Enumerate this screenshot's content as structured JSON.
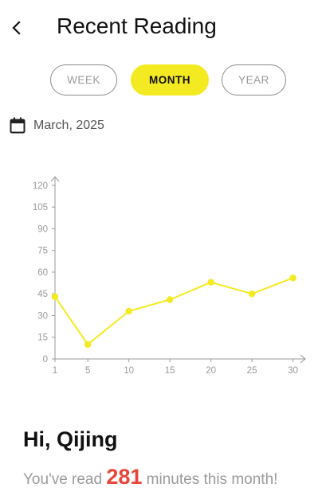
{
  "header": {
    "title": "Recent Reading",
    "back_icon": "chevron-left-icon"
  },
  "tabs": [
    {
      "label": "WEEK",
      "active": false
    },
    {
      "label": "MONTH",
      "active": true
    },
    {
      "label": "YEAR",
      "active": false
    }
  ],
  "date": {
    "icon": "calendar-icon",
    "label": "March, 2025"
  },
  "colors": {
    "accent": "#f3ea21",
    "highlight_number": "#e8463a",
    "muted_text": "#9a9a9a",
    "axis": "#9a9a9a"
  },
  "chart_data": {
    "type": "line",
    "x": [
      1,
      5,
      10,
      15,
      20,
      25,
      30
    ],
    "x_ticks": [
      1,
      5,
      10,
      15,
      20,
      25,
      30
    ],
    "y_ticks": [
      0,
      15,
      30,
      45,
      60,
      75,
      90,
      105,
      120
    ],
    "series": [
      {
        "values": [
          43,
          10,
          33,
          41,
          53,
          45,
          56
        ],
        "color": "#f3ea21"
      }
    ],
    "xlim": [
      1,
      31.5
    ],
    "ylim": [
      0,
      126
    ],
    "title": "",
    "xlabel": "",
    "ylabel": "",
    "grid": false,
    "legend": "none"
  },
  "greeting": "Hi, Qijing",
  "summary": {
    "prefix": "You've read ",
    "minutes": "281",
    "suffix": " minutes this month!"
  }
}
